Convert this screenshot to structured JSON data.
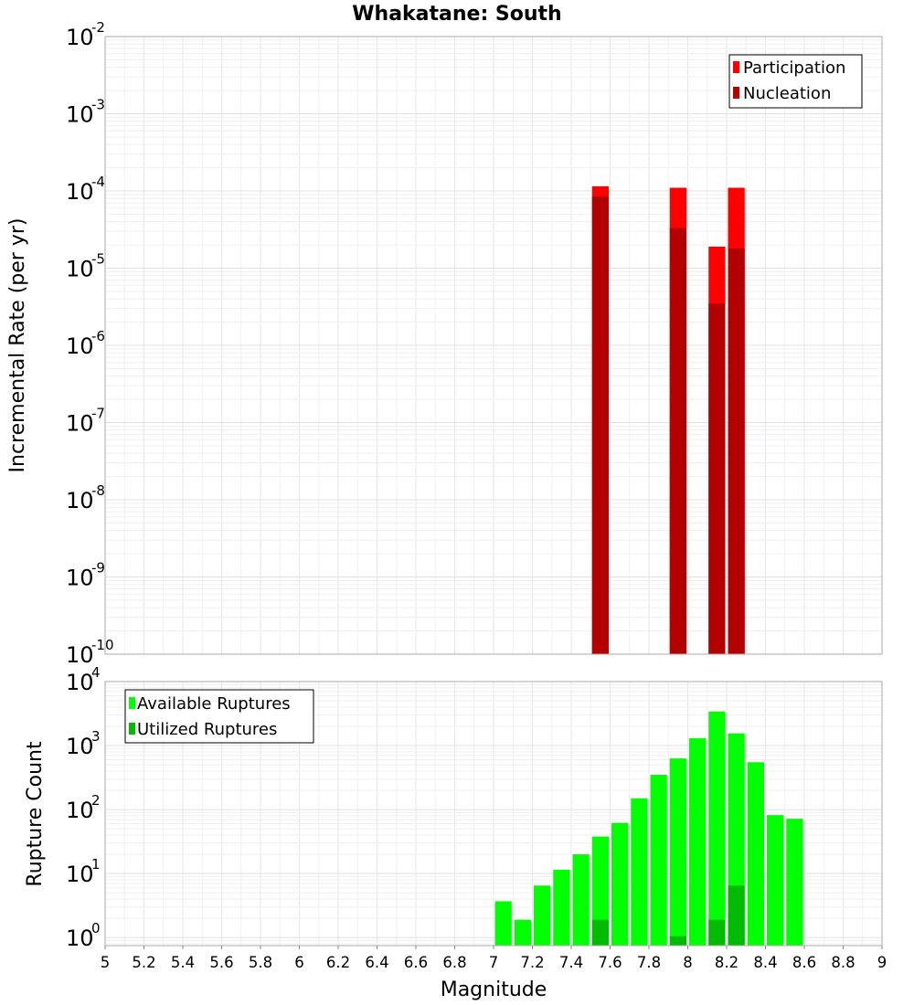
{
  "chart_data": [
    {
      "type": "bar",
      "title": "Whakatane: South",
      "xlabel": "Magnitude",
      "ylabel": "Incremental Rate (per yr)",
      "yscale": "log",
      "xlim": [
        5,
        9
      ],
      "ylim_exp": [
        -10,
        -2
      ],
      "ytick_exponents": [
        "-10",
        "-9",
        "-8",
        "-7",
        "-6",
        "-5",
        "-4",
        "-3",
        "-2"
      ],
      "bin_width": 0.1,
      "legend_position": "top-right",
      "colors": {
        "participation": "#ff0000",
        "nucleation": "#b30000"
      },
      "series": [
        {
          "name": "Participation",
          "x": [
            7.55,
            7.95,
            8.15,
            8.25
          ],
          "values": [
            0.000115,
            0.00011,
            1.9e-05,
            0.00011
          ]
        },
        {
          "name": "Nucleation",
          "x": [
            7.55,
            7.95,
            8.15,
            8.25
          ],
          "values": [
            8.5e-05,
            3.3e-05,
            3.5e-06,
            1.8e-05
          ]
        }
      ]
    },
    {
      "type": "bar",
      "xlabel": "Magnitude",
      "ylabel": "Rupture Count",
      "yscale": "log",
      "xlim": [
        5,
        9
      ],
      "ylim": [
        0.75,
        10000
      ],
      "ytick_exponents": [
        "0",
        "1",
        "2",
        "3",
        "4"
      ],
      "xtick_labels": [
        "5",
        "5.2",
        "5.4",
        "5.6",
        "5.8",
        "6",
        "6.2",
        "6.4",
        "6.6",
        "6.8",
        "7",
        "7.2",
        "7.4",
        "7.6",
        "7.8",
        "8",
        "8.2",
        "8.4",
        "8.6",
        "8.8",
        "9"
      ],
      "bin_width": 0.1,
      "legend_position": "top-left",
      "colors": {
        "available": "#00ff00",
        "utilized": "#00bb00"
      },
      "series": [
        {
          "name": "Available Ruptures",
          "x": [
            7.05,
            7.15,
            7.25,
            7.35,
            7.45,
            7.55,
            7.65,
            7.75,
            7.85,
            7.95,
            8.05,
            8.15,
            8.25,
            8.35,
            8.45,
            8.55
          ],
          "values": [
            3.7,
            1.9,
            6.5,
            11.5,
            20,
            38,
            62,
            150,
            350,
            630,
            1300,
            3400,
            1550,
            550,
            82,
            72
          ]
        },
        {
          "name": "Utilized Ruptures",
          "x": [
            7.55,
            7.95,
            8.15,
            8.25
          ],
          "values": [
            1.9,
            1.05,
            1.9,
            6.5
          ]
        }
      ]
    }
  ]
}
